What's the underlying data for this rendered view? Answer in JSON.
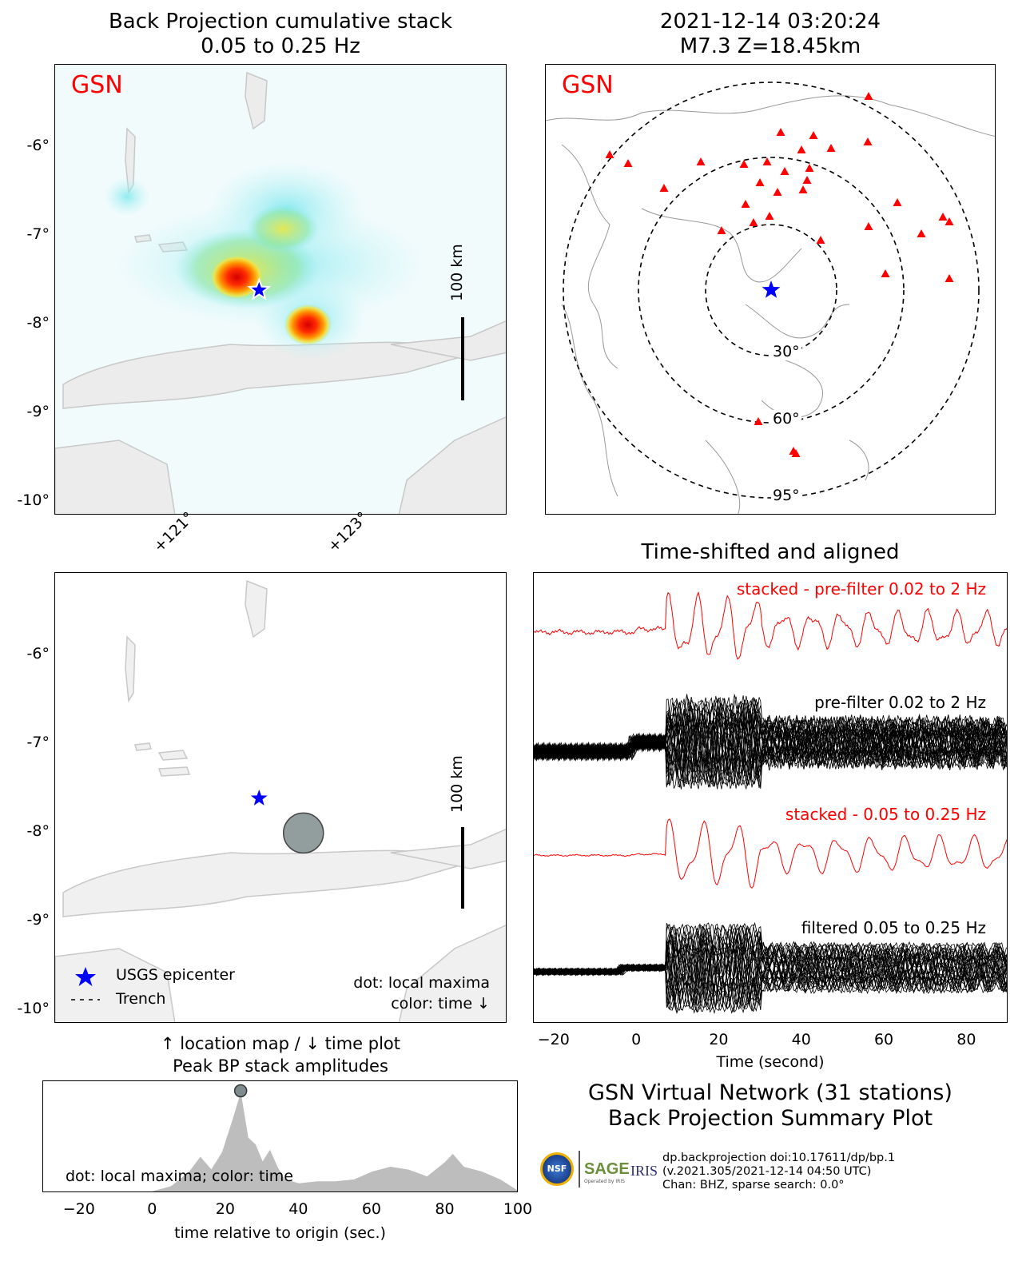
{
  "bp_panel": {
    "title_line1": "Back Projection cumulative stack",
    "title_line2": "0.05 to 0.25 Hz",
    "network_label": "GSN",
    "scale_label": "100 km",
    "lat_ticks": [
      "-6°",
      "-7°",
      "-8°",
      "-9°",
      "-10°"
    ],
    "lon_ticks": [
      "+121°",
      "+123°"
    ]
  },
  "station_panel": {
    "title_line1": "2021-12-14 03:20:24",
    "title_line2": "M7.3 Z=18.45km",
    "network_label": "GSN",
    "distance_labels": [
      "30°",
      "60°",
      "95°"
    ]
  },
  "location_panel": {
    "scale_label": "100 km",
    "lat_ticks": [
      "-6°",
      "-7°",
      "-8°",
      "-9°",
      "-10°"
    ],
    "legend_epicenter": "USGS epicenter",
    "legend_trench": "Trench",
    "note_line1": "dot: local maxima",
    "note_line2": "color: time ↓",
    "caption_line1": "↑ location map / ↓ time plot",
    "caption_line2": "Peak BP stack amplitudes"
  },
  "time_plot": {
    "annotation": "dot: local maxima; color: time",
    "xlabel": "time relative to origin (sec.)",
    "x_ticks": [
      "−20",
      "0",
      "20",
      "40",
      "60",
      "80",
      "100"
    ]
  },
  "traces_panel": {
    "title": "Time-shifted and aligned",
    "label_stacked_pre": "stacked - pre-filter 0.02 to 2 Hz",
    "label_pre": "pre-filter 0.02 to 2 Hz",
    "label_stacked_filt": "stacked - 0.05 to 0.25 Hz",
    "label_filt": "filtered 0.05 to 0.25 Hz",
    "xlabel": "Time (second)",
    "x_ticks": [
      "−20",
      "0",
      "20",
      "40",
      "60",
      "80"
    ]
  },
  "summary": {
    "line1": "GSN Virtual Network (31 stations)",
    "line2": "Back Projection Summary Plot"
  },
  "footer": {
    "logo_nsf": "NSF",
    "logo_sage": "SAGE",
    "logo_sage_sub": "Operated by IRIS",
    "logo_iris": "IRIS",
    "line1": "dp.backprojection doi:10.17611/dp/bp.1",
    "line2": "(v.2021.305/2021-12-14 04:50 UTC)",
    "line3": "Chan: BHZ, sparse search: 0.0°"
  },
  "chart_data": [
    {
      "type": "heatmap",
      "title": "Back Projection cumulative stack 0.05 to 0.25 Hz",
      "lat_range": [
        -10.2,
        -5.0
      ],
      "lon_range": [
        119.9,
        125.0
      ],
      "epicenter": {
        "lat": -7.6,
        "lon": 122.2
      },
      "peaks": [
        {
          "lat": -7.45,
          "lon": 121.95,
          "level": "max"
        },
        {
          "lat": -8.0,
          "lon": 122.75,
          "level": "high"
        }
      ]
    },
    {
      "type": "scatter",
      "title": "Peak BP stack amplitudes",
      "xlabel": "time relative to origin (sec.)",
      "xlim": [
        -30,
        100
      ],
      "local_maxima": [
        {
          "time": 24,
          "lat": -8.0,
          "lon": 122.7
        }
      ],
      "envelope": {
        "x": [
          0,
          5,
          10,
          13,
          16,
          19,
          22,
          24,
          26,
          28,
          30,
          32,
          34,
          36,
          40,
          45,
          50,
          55,
          60,
          65,
          70,
          75,
          80,
          82,
          85,
          90,
          95,
          100
        ],
        "y": [
          0,
          0.05,
          0.2,
          0.35,
          0.22,
          0.4,
          0.75,
          1.0,
          0.55,
          0.48,
          0.3,
          0.42,
          0.25,
          0.12,
          0.08,
          0.1,
          0.1,
          0.12,
          0.2,
          0.25,
          0.22,
          0.15,
          0.3,
          0.38,
          0.25,
          0.2,
          0.12,
          0.0
        ]
      }
    },
    {
      "type": "line",
      "title": "Time-shifted and aligned",
      "xlabel": "Time (second)",
      "xlim": [
        -25,
        90
      ],
      "series": [
        {
          "name": "stacked - pre-filter 0.02 to 2 Hz",
          "color": "#ff0000"
        },
        {
          "name": "pre-filter 0.02 to 2 Hz",
          "color": "#000000"
        },
        {
          "name": "stacked - 0.05 to 0.25 Hz",
          "color": "#ff0000"
        },
        {
          "name": "filtered 0.05 to 0.25 Hz",
          "color": "#000000"
        }
      ]
    }
  ]
}
